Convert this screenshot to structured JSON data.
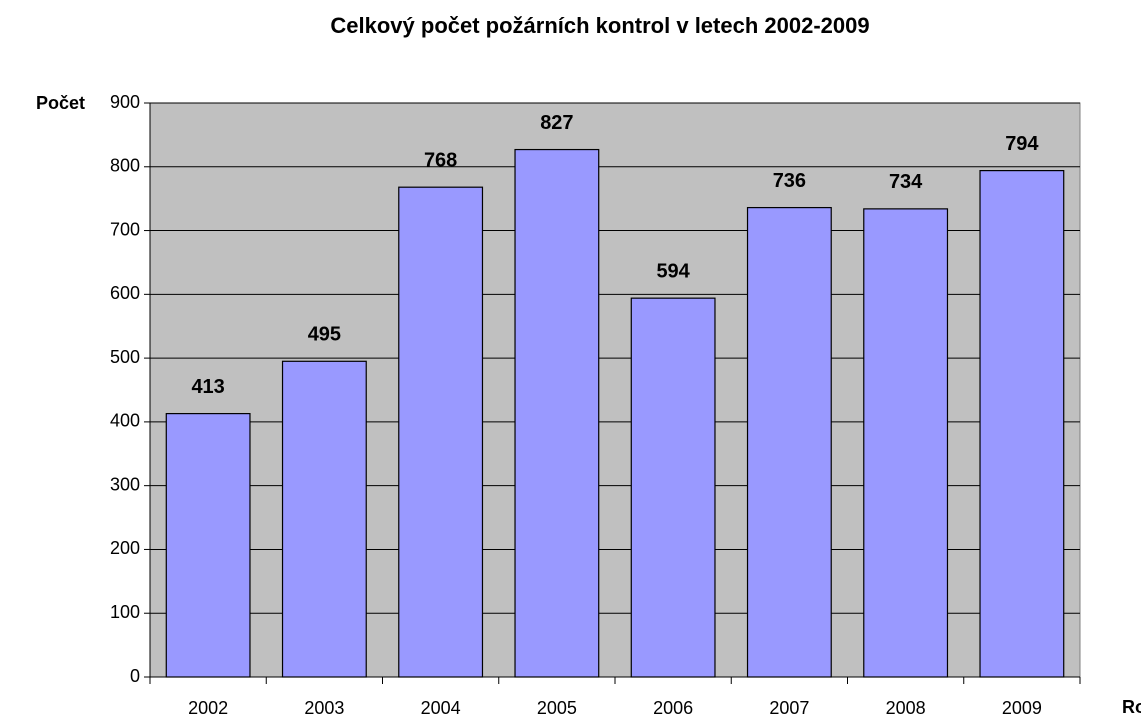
{
  "chart_data": {
    "type": "bar",
    "title": "Celkový počet požárních kontrol v letech 2002-2009",
    "y_label": "Počet",
    "x_label": "Rok",
    "categories": [
      "2002",
      "2003",
      "2004",
      "2005",
      "2006",
      "2007",
      "2008",
      "2009"
    ],
    "values": [
      413,
      495,
      768,
      827,
      594,
      736,
      734,
      794
    ],
    "color": "#9999ff",
    "background": "#c0c0c0",
    "ylim": [
      0,
      900
    ],
    "yticks": [
      0,
      100,
      200,
      300,
      400,
      500,
      600,
      700,
      800,
      900
    ],
    "grid": true
  }
}
